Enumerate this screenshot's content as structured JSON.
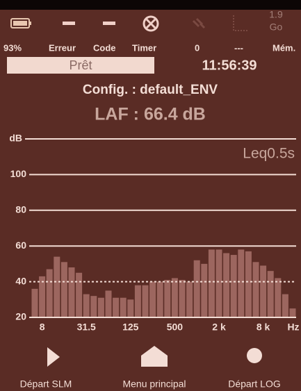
{
  "status": {
    "battery": "93%",
    "error": "Erreur",
    "code": "Code",
    "timer": "Timer",
    "counter": "0",
    "dashes": "---",
    "memory": "Mém.",
    "storage_value": "1.9",
    "storage_unit": "Go"
  },
  "state": "Prêt",
  "time": "11:56:39",
  "config": "Config. : default_ENV",
  "measure": "LAF : 66.4 dB",
  "chart_data": {
    "type": "bar",
    "annotation": "Leq0.5s",
    "x_label": "Hz",
    "categories": [
      null,
      "8",
      null,
      null,
      null,
      null,
      null,
      "31.5",
      null,
      null,
      null,
      null,
      null,
      "125",
      null,
      null,
      null,
      null,
      null,
      "500",
      null,
      null,
      null,
      null,
      null,
      "2 k",
      null,
      null,
      null,
      null,
      null,
      "8 k",
      null,
      null,
      null,
      null
    ],
    "values": [
      36,
      43,
      47,
      54,
      51,
      48,
      45,
      33,
      32,
      31,
      35,
      31,
      31,
      30,
      38,
      38,
      40,
      40,
      41,
      42,
      41,
      40,
      52,
      50,
      58,
      58,
      56,
      55,
      58,
      57,
      51,
      49,
      46,
      42,
      33,
      25
    ],
    "color": "#a8716a",
    "ylim": [
      20,
      120
    ],
    "yticks": [
      20,
      40,
      60,
      80,
      100,
      {
        "value": 120,
        "label": "dB"
      }
    ],
    "grid": true
  },
  "buttons": [
    "Départ SLM",
    "Menu principal",
    "Départ LOG"
  ]
}
